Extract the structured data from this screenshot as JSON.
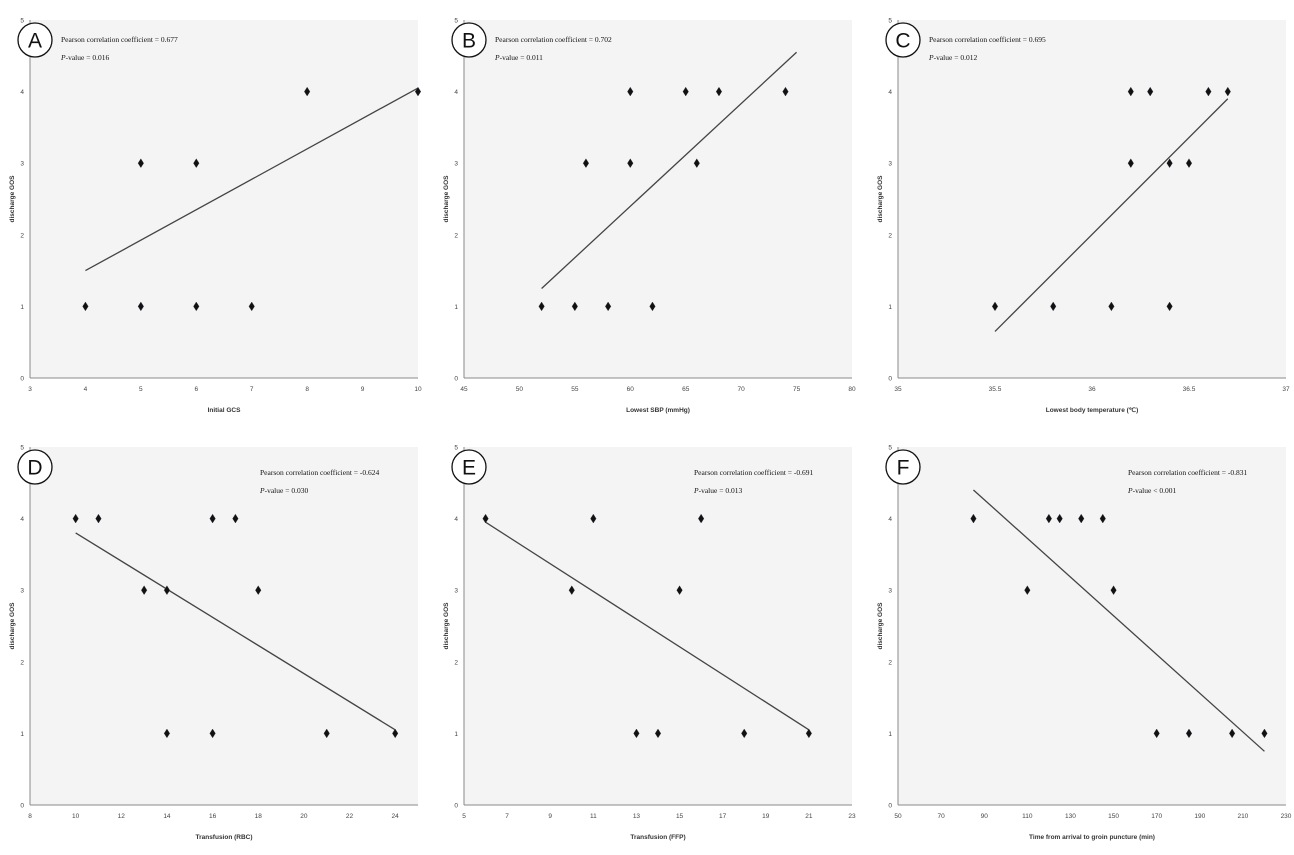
{
  "chart_data": [
    {
      "type": "scatter",
      "panel_label": "A",
      "stat_line_1": "Pearson correlation coefficient = 0.677",
      "stat_line_2_prefix": "P",
      "stat_line_2_suffix": "-value = 0.016",
      "xlabel": "Initial GCS",
      "ylabel": "discharge GOS",
      "xlim": [
        3,
        10
      ],
      "ylim": [
        0,
        5
      ],
      "xticks": [
        3,
        4,
        5,
        6,
        7,
        8,
        9,
        10
      ],
      "yticks": [
        0,
        1,
        2,
        3,
        4,
        5
      ],
      "points": [
        [
          4,
          1
        ],
        [
          5,
          1
        ],
        [
          6,
          1
        ],
        [
          7,
          1
        ],
        [
          5,
          3
        ],
        [
          6,
          3
        ],
        [
          8,
          4
        ],
        [
          10,
          4
        ]
      ],
      "trendline": [
        [
          4,
          1.5
        ],
        [
          10,
          4.05
        ]
      ],
      "stats_position": "top-left"
    },
    {
      "type": "scatter",
      "panel_label": "B",
      "stat_line_1": "Pearson correlation coefficient = 0.702",
      "stat_line_2_prefix": "P",
      "stat_line_2_suffix": "-value = 0.011",
      "xlabel": "Lowest SBP (mmHg)",
      "ylabel": "discharge GOS",
      "xlim": [
        45,
        80
      ],
      "ylim": [
        0,
        5
      ],
      "xticks": [
        45,
        50,
        55,
        60,
        65,
        70,
        75,
        80
      ],
      "yticks": [
        0,
        1,
        2,
        3,
        4,
        5
      ],
      "points": [
        [
          52,
          1
        ],
        [
          55,
          1
        ],
        [
          58,
          1
        ],
        [
          62,
          1
        ],
        [
          56,
          3
        ],
        [
          60,
          3
        ],
        [
          66,
          3
        ],
        [
          60,
          4
        ],
        [
          65,
          4
        ],
        [
          68,
          4
        ],
        [
          74,
          4
        ]
      ],
      "trendline": [
        [
          52,
          1.25
        ],
        [
          75,
          4.55
        ]
      ],
      "stats_position": "top-left"
    },
    {
      "type": "scatter",
      "panel_label": "C",
      "stat_line_1": "Pearson correlation coefficient = 0.695",
      "stat_line_2_prefix": "P",
      "stat_line_2_suffix": "-value = 0.012",
      "xlabel": "Lowest body temperature (℃)",
      "ylabel": "discharge GOS",
      "xlim": [
        35,
        37
      ],
      "ylim": [
        0,
        5
      ],
      "xticks": [
        35,
        35.5,
        36,
        36.5,
        37
      ],
      "yticks": [
        0,
        1,
        2,
        3,
        4,
        5
      ],
      "points": [
        [
          35.5,
          1
        ],
        [
          35.8,
          1
        ],
        [
          36.1,
          1
        ],
        [
          36.4,
          1
        ],
        [
          36.2,
          3
        ],
        [
          36.4,
          3
        ],
        [
          36.5,
          3
        ],
        [
          36.2,
          4
        ],
        [
          36.3,
          4
        ],
        [
          36.6,
          4
        ],
        [
          36.7,
          4
        ]
      ],
      "trendline": [
        [
          35.5,
          0.65
        ],
        [
          36.7,
          3.9
        ]
      ],
      "stats_position": "top-left"
    },
    {
      "type": "scatter",
      "panel_label": "D",
      "stat_line_1": "Pearson correlation coefficient = -0.624",
      "stat_line_2_prefix": "P",
      "stat_line_2_suffix": "-value = 0.030",
      "xlabel": "Transfusion (RBC)",
      "ylabel": "discharge GOS",
      "xlim": [
        8,
        25
      ],
      "ylim": [
        0,
        5
      ],
      "xticks": [
        8,
        10,
        12,
        14,
        16,
        18,
        20,
        22,
        24
      ],
      "yticks": [
        0,
        1,
        2,
        3,
        4,
        5
      ],
      "points": [
        [
          10,
          4
        ],
        [
          11,
          4
        ],
        [
          16,
          4
        ],
        [
          17,
          4
        ],
        [
          13,
          3
        ],
        [
          14,
          3
        ],
        [
          18,
          3
        ],
        [
          14,
          1
        ],
        [
          16,
          1
        ],
        [
          21,
          1
        ],
        [
          24,
          1
        ]
      ],
      "trendline": [
        [
          10,
          3.8
        ],
        [
          24,
          1.05
        ]
      ],
      "stats_position": "top-right"
    },
    {
      "type": "scatter",
      "panel_label": "E",
      "stat_line_1": "Pearson correlation coefficient = -0.691",
      "stat_line_2_prefix": "P",
      "stat_line_2_suffix": "-value = 0.013",
      "xlabel": "Transfusion (FFP)",
      "ylabel": "discharge GOS",
      "xlim": [
        5,
        23
      ],
      "ylim": [
        0,
        5
      ],
      "xticks": [
        5,
        7,
        9,
        11,
        13,
        15,
        17,
        19,
        21,
        23
      ],
      "yticks": [
        0,
        1,
        2,
        3,
        4,
        5
      ],
      "points": [
        [
          6,
          4
        ],
        [
          11,
          4
        ],
        [
          16,
          4
        ],
        [
          10,
          3
        ],
        [
          15,
          3
        ],
        [
          13,
          1
        ],
        [
          14,
          1
        ],
        [
          18,
          1
        ],
        [
          21,
          1
        ]
      ],
      "trendline": [
        [
          6,
          3.95
        ],
        [
          21,
          1.05
        ]
      ],
      "stats_position": "top-right"
    },
    {
      "type": "scatter",
      "panel_label": "F",
      "stat_line_1": "Pearson correlation coefficient = -0.831",
      "stat_line_2_prefix": "P",
      "stat_line_2_suffix": "-value < 0.001",
      "xlabel": "Time from arrival to groin puncture (min)",
      "ylabel": "discharge GOS",
      "xlim": [
        50,
        230
      ],
      "ylim": [
        0,
        5
      ],
      "xticks": [
        50,
        70,
        90,
        110,
        130,
        150,
        170,
        190,
        210,
        230
      ],
      "yticks": [
        0,
        1,
        2,
        3,
        4,
        5
      ],
      "points": [
        [
          85,
          4
        ],
        [
          120,
          4
        ],
        [
          125,
          4
        ],
        [
          135,
          4
        ],
        [
          145,
          4
        ],
        [
          110,
          3
        ],
        [
          150,
          3
        ],
        [
          170,
          1
        ],
        [
          185,
          1
        ],
        [
          205,
          1
        ],
        [
          220,
          1
        ]
      ],
      "trendline": [
        [
          85,
          4.4
        ],
        [
          220,
          0.75
        ]
      ],
      "stats_position": "top-right"
    }
  ]
}
